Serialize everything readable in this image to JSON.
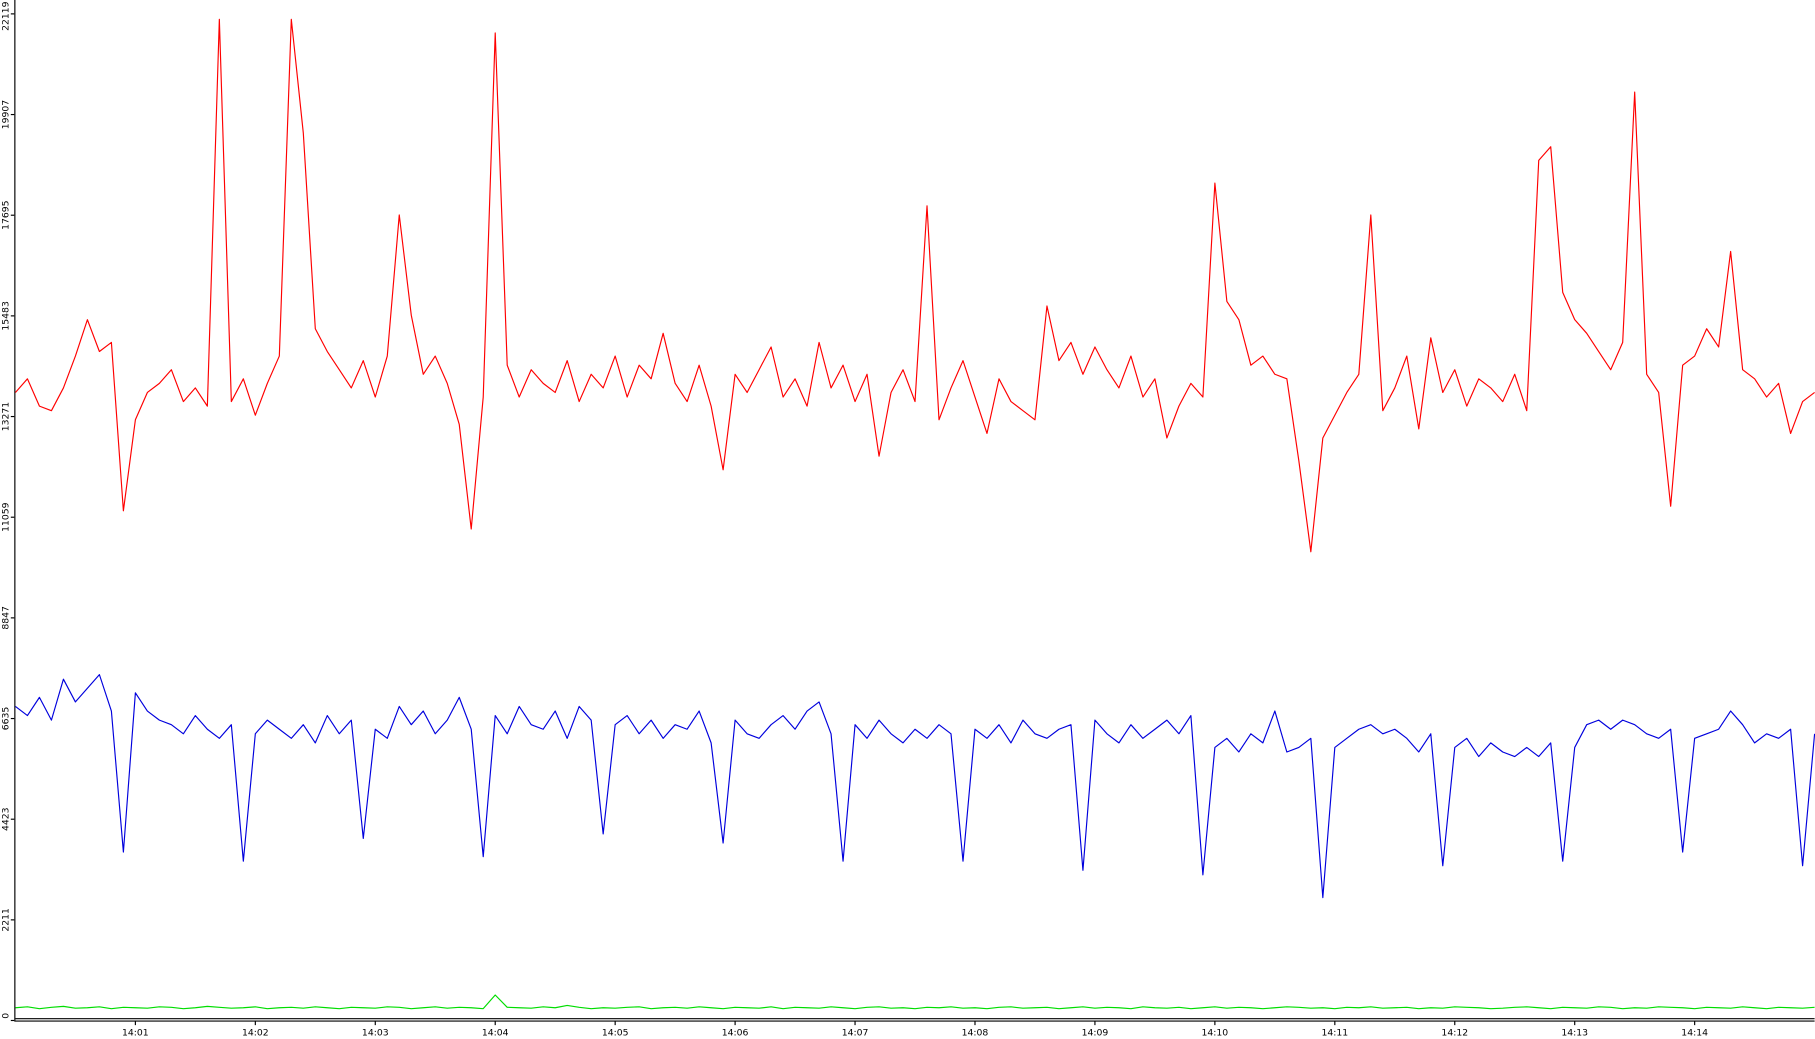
{
  "chart_data": {
    "type": "line",
    "categories": [
      null,
      null,
      null,
      null,
      null,
      null,
      null,
      null,
      null,
      null,
      "14:01",
      null,
      null,
      null,
      null,
      null,
      null,
      null,
      null,
      null,
      "14:02",
      null,
      null,
      null,
      null,
      null,
      null,
      null,
      null,
      null,
      "14:03",
      null,
      null,
      null,
      null,
      null,
      null,
      null,
      null,
      null,
      "14:04",
      null,
      null,
      null,
      null,
      null,
      null,
      null,
      null,
      null,
      "14:05",
      null,
      null,
      null,
      null,
      null,
      null,
      null,
      null,
      null,
      "14:06",
      null,
      null,
      null,
      null,
      null,
      null,
      null,
      null,
      null,
      "14:07",
      null,
      null,
      null,
      null,
      null,
      null,
      null,
      null,
      null,
      "14:08",
      null,
      null,
      null,
      null,
      null,
      null,
      null,
      null,
      null,
      "14:09",
      null,
      null,
      null,
      null,
      null,
      null,
      null,
      null,
      null,
      "14:10",
      null,
      null,
      null,
      null,
      null,
      null,
      null,
      null,
      null,
      "14:11",
      null,
      null,
      null,
      null,
      null,
      null,
      null,
      null,
      null,
      "14:12",
      null,
      null,
      null,
      null,
      null,
      null,
      null,
      null,
      null,
      "14:13",
      null,
      null,
      null,
      null,
      null,
      null,
      null,
      null,
      null,
      "14:14",
      null,
      null,
      null,
      null,
      null,
      null,
      null,
      null,
      null,
      null
    ],
    "series": [
      {
        "color": "#ff0000",
        "values": [
          13800,
          14100,
          13500,
          13400,
          13900,
          14600,
          15400,
          14700,
          14900,
          11200,
          13200,
          13800,
          14000,
          14300,
          13600,
          13900,
          13500,
          22000,
          13600,
          14100,
          13300,
          14000,
          14600,
          22000,
          19500,
          15200,
          14700,
          14300,
          13900,
          14500,
          13700,
          14600,
          17700,
          15500,
          14200,
          14600,
          14000,
          13100,
          10800,
          13700,
          21700,
          14400,
          13700,
          14300,
          14000,
          13800,
          14500,
          13600,
          14200,
          13900,
          14600,
          13700,
          14400,
          14100,
          15100,
          14000,
          13600,
          14400,
          13500,
          12100,
          14200,
          13800,
          14300,
          14800,
          13700,
          14100,
          13500,
          14900,
          13900,
          14400,
          13600,
          14200,
          12400,
          13800,
          14300,
          13600,
          17900,
          13200,
          13900,
          14500,
          13700,
          12900,
          14100,
          13600,
          13400,
          13200,
          15700,
          14500,
          14900,
          14200,
          14800,
          14300,
          13900,
          14600,
          13700,
          14100,
          12800,
          13500,
          14000,
          13700,
          18400,
          15800,
          15400,
          14400,
          14600,
          14200,
          14100,
          12300,
          10300,
          12800,
          13300,
          13800,
          14200,
          17700,
          13400,
          13900,
          14600,
          13000,
          15000,
          13800,
          14300,
          13500,
          14100,
          13900,
          13600,
          14200,
          13400,
          18900,
          19200,
          16000,
          15400,
          15100,
          14700,
          14300,
          14900,
          20400,
          14200,
          13800,
          11300,
          14400,
          14600,
          15200,
          14800,
          16900,
          14300,
          14100,
          13700,
          14000,
          12900,
          13600,
          13800
        ]
      },
      {
        "color": "#0000dd",
        "values": [
          6900,
          6700,
          7100,
          6600,
          7500,
          7000,
          7300,
          7600,
          6800,
          3700,
          7200,
          6800,
          6600,
          6500,
          6300,
          6700,
          6400,
          6200,
          6500,
          3500,
          6300,
          6600,
          6400,
          6200,
          6500,
          6100,
          6700,
          6300,
          6600,
          4000,
          6400,
          6200,
          6900,
          6500,
          6800,
          6300,
          6600,
          7100,
          6400,
          3600,
          6700,
          6300,
          6900,
          6500,
          6400,
          6800,
          6200,
          6900,
          6600,
          4100,
          6500,
          6700,
          6300,
          6600,
          6200,
          6500,
          6400,
          6800,
          6100,
          3900,
          6600,
          6300,
          6200,
          6500,
          6700,
          6400,
          6800,
          7000,
          6300,
          3500,
          6500,
          6200,
          6600,
          6300,
          6100,
          6400,
          6200,
          6500,
          6300,
          3500,
          6400,
          6200,
          6500,
          6100,
          6600,
          6300,
          6200,
          6400,
          6500,
          3300,
          6600,
          6300,
          6100,
          6500,
          6200,
          6400,
          6600,
          6300,
          6700,
          3200,
          6000,
          6200,
          5900,
          6300,
          6100,
          6800,
          5900,
          6000,
          6200,
          2700,
          6000,
          6200,
          6400,
          6500,
          6300,
          6400,
          6200,
          5900,
          6300,
          3400,
          6000,
          6200,
          5800,
          6100,
          5900,
          5800,
          6000,
          5800,
          6100,
          3500,
          6000,
          6500,
          6600,
          6400,
          6600,
          6500,
          6300,
          6200,
          6400,
          3700,
          6200,
          6300,
          6400,
          6800,
          6500,
          6100,
          6300,
          6200,
          6400,
          3400,
          6300
        ]
      },
      {
        "color": "#00dd00",
        "values": [
          280,
          300,
          260,
          290,
          310,
          270,
          280,
          300,
          260,
          290,
          280,
          270,
          300,
          290,
          260,
          280,
          310,
          290,
          270,
          280,
          300,
          260,
          280,
          290,
          270,
          300,
          280,
          260,
          290,
          280,
          270,
          300,
          290,
          260,
          280,
          300,
          270,
          290,
          280,
          260,
          560,
          290,
          280,
          270,
          300,
          280,
          330,
          290,
          260,
          280,
          270,
          290,
          300,
          260,
          280,
          290,
          270,
          300,
          280,
          260,
          290,
          280,
          270,
          300,
          260,
          290,
          280,
          270,
          300,
          280,
          260,
          290,
          300,
          270,
          280,
          260,
          290,
          280,
          300,
          270,
          280,
          260,
          290,
          300,
          270,
          280,
          290,
          260,
          280,
          300,
          270,
          290,
          280,
          260,
          300,
          280,
          270,
          290,
          260,
          280,
          300,
          270,
          290,
          280,
          260,
          280,
          300,
          290,
          270,
          280,
          260,
          290,
          280,
          300,
          270,
          280,
          290,
          260,
          280,
          270,
          300,
          290,
          280,
          260,
          270,
          290,
          300,
          280,
          260,
          290,
          280,
          270,
          300,
          290,
          260,
          280,
          270,
          300,
          290,
          280,
          260,
          290,
          280,
          270,
          300,
          280,
          260,
          290,
          280,
          270,
          290
        ]
      },
      {
        "color": "#000000",
        "values": [
          40,
          40,
          40,
          40,
          40,
          40,
          40,
          40,
          40,
          40,
          40,
          40,
          40,
          40,
          40,
          40,
          40,
          40,
          40,
          40,
          40,
          40,
          40,
          40,
          40,
          40,
          40,
          40,
          40,
          40,
          40,
          40,
          40,
          40,
          40,
          40,
          40,
          40,
          40,
          40,
          40,
          40,
          40,
          40,
          40,
          40,
          40,
          40,
          40,
          40,
          40,
          40,
          40,
          40,
          40,
          40,
          40,
          40,
          40,
          40,
          40,
          40,
          40,
          40,
          40,
          40,
          40,
          40,
          40,
          40,
          40,
          40,
          40,
          40,
          40,
          40,
          40,
          40,
          40,
          40,
          40,
          40,
          40,
          40,
          40,
          40,
          40,
          40,
          40,
          40,
          40,
          40,
          40,
          40,
          40,
          40,
          40,
          40,
          40,
          40,
          40,
          40,
          40,
          40,
          40,
          40,
          40,
          40,
          40,
          40,
          40,
          40,
          40,
          40,
          40,
          40,
          40,
          40,
          40,
          40,
          40,
          40,
          40,
          40,
          40,
          40,
          40,
          40,
          40,
          40,
          40,
          40,
          40,
          40,
          40,
          40,
          40,
          40,
          40,
          40,
          40,
          40,
          40,
          40,
          40,
          40,
          40,
          40,
          40,
          40,
          40
        ]
      }
    ],
    "ylim": [
      0,
      22119
    ],
    "yticks": [
      0,
      2211,
      4423,
      6635,
      8847,
      11059,
      13271,
      15483,
      17695,
      19907,
      22119
    ]
  }
}
